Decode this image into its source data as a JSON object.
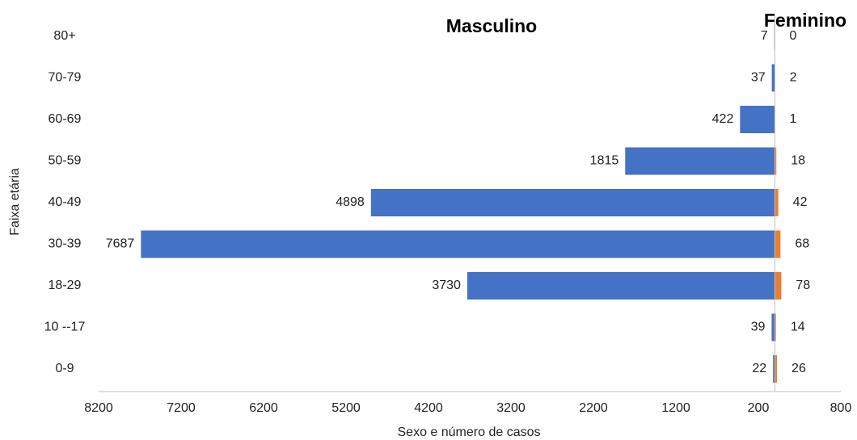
{
  "chart_data": {
    "type": "pyramid",
    "x_label": "Sexo e número de casos",
    "y_label": "Faixa etária",
    "categories": [
      "80+",
      "70-79",
      "60-69",
      "50-59",
      "40-49",
      "30-39",
      "18-29",
      "10 --17",
      "0-9"
    ],
    "series": [
      {
        "name": "Masculino",
        "color": "#4472c4",
        "side": "left",
        "values": [
          7,
          37,
          422,
          1815,
          4898,
          7687,
          3730,
          39,
          22
        ]
      },
      {
        "name": "Feminino",
        "color": "#ed7d31",
        "side": "right",
        "values": [
          0,
          2,
          1,
          18,
          42,
          68,
          78,
          14,
          26
        ]
      }
    ],
    "xlim": [
      -8200,
      800
    ],
    "xticks": [
      {
        "value": -8200,
        "label": "8200"
      },
      {
        "value": -7200,
        "label": "7200"
      },
      {
        "value": -6200,
        "label": "6200"
      },
      {
        "value": -5200,
        "label": "5200"
      },
      {
        "value": -4200,
        "label": "4200"
      },
      {
        "value": -3200,
        "label": "3200"
      },
      {
        "value": -2200,
        "label": "2200"
      },
      {
        "value": -1200,
        "label": "1200"
      },
      {
        "value": -200,
        "label": "200"
      },
      {
        "value": 800,
        "label": "800"
      }
    ]
  }
}
